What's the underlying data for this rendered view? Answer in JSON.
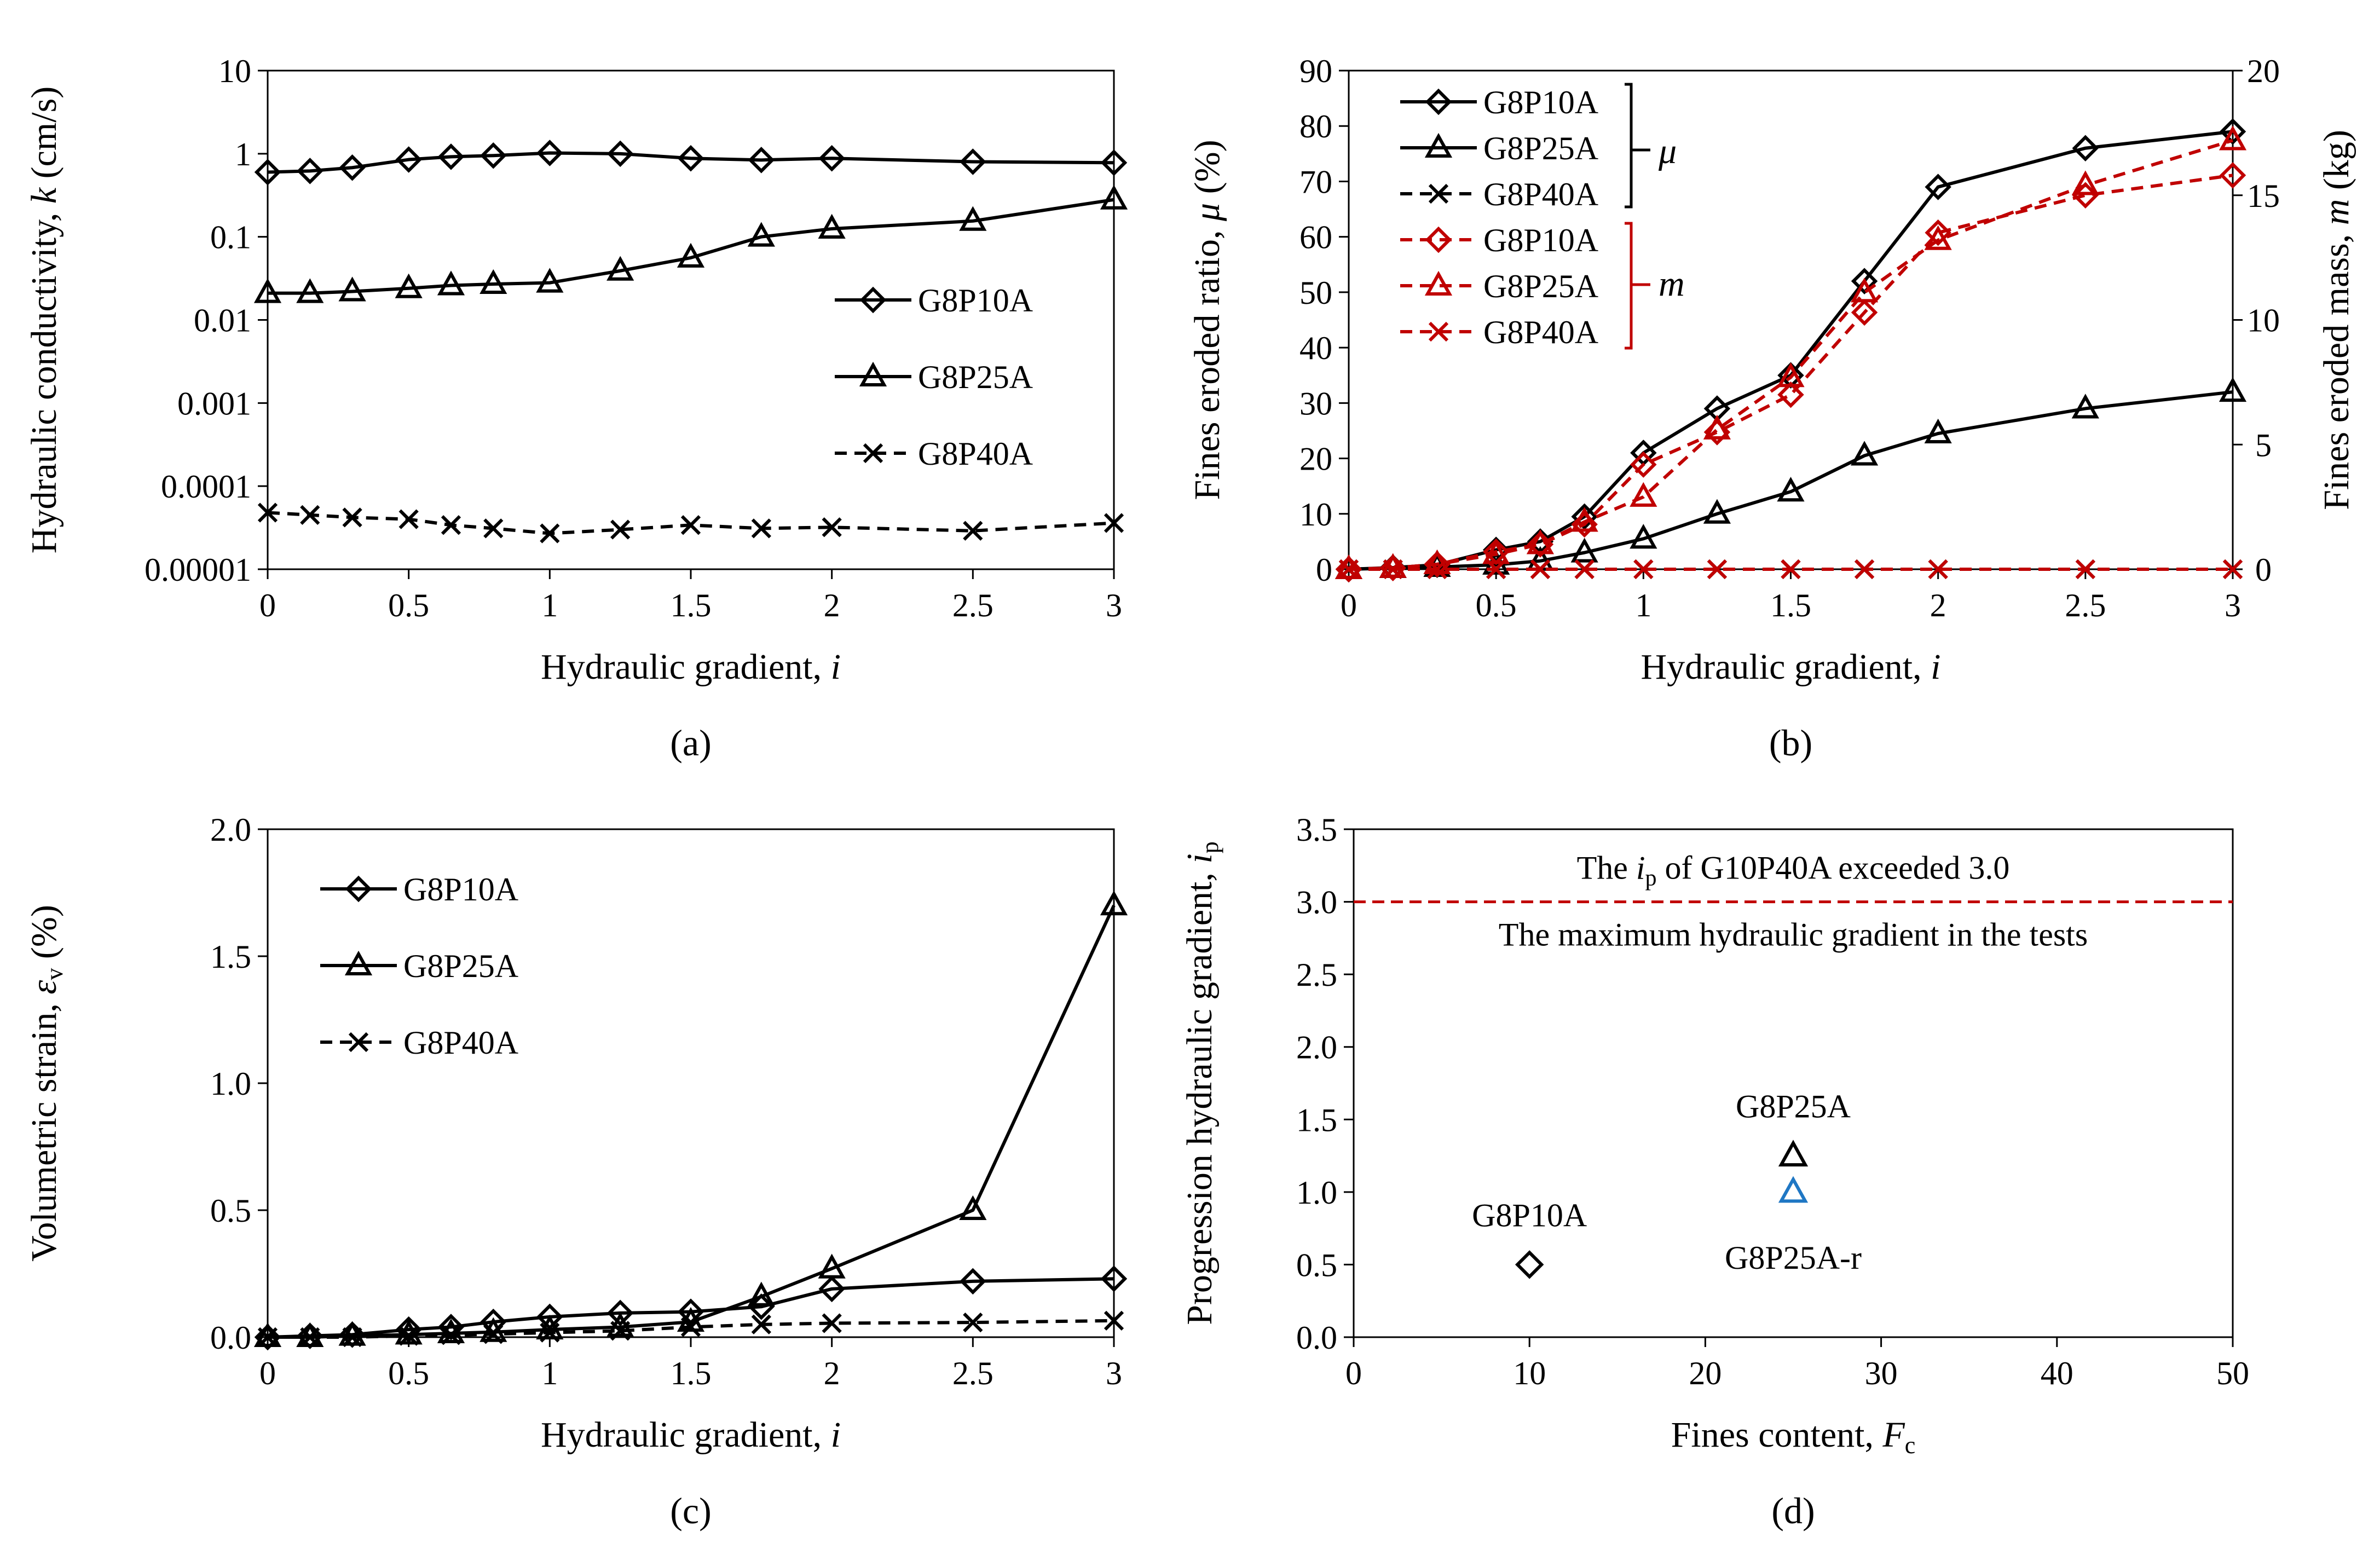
{
  "colors": {
    "black": "#000000",
    "red": "#c00000",
    "blue": "#1f77c4"
  },
  "chart_data": [
    {
      "id": "a",
      "type": "line",
      "caption": "(a)",
      "xlabel_text": "Hydraulic gradient, ",
      "xlabel_italic": "i",
      "ylabel_text": "Hydraulic conductivity, ",
      "ylabel_italic": "k",
      "ylabel_suffix": " (cm/s)",
      "xlim": [
        0,
        3
      ],
      "ylim": [
        1e-05,
        10
      ],
      "yscale": "log",
      "xticks": [
        0,
        0.5,
        1,
        1.5,
        2,
        2.5,
        3
      ],
      "xtick_labels": [
        "0",
        "0.5",
        "1",
        "1.5",
        "2",
        "2.5",
        "3"
      ],
      "yticks": [
        1e-05,
        0.0001,
        0.001,
        0.01,
        0.1,
        1,
        10
      ],
      "ytick_labels": [
        "0.00001",
        "0.0001",
        "0.001",
        "0.01",
        "0.1",
        "1",
        "10"
      ],
      "legend_position": "center-right",
      "series": [
        {
          "name": "G8P10A",
          "marker": "diamond",
          "color": "#000000",
          "dash": false,
          "x": [
            0,
            0.15,
            0.3,
            0.5,
            0.65,
            0.8,
            1,
            1.25,
            1.5,
            1.75,
            2,
            2.5,
            3
          ],
          "y": [
            0.6,
            0.62,
            0.68,
            0.85,
            0.92,
            0.95,
            1.02,
            1.0,
            0.88,
            0.84,
            0.88,
            0.8,
            0.78
          ]
        },
        {
          "name": "G8P25A",
          "marker": "triangle",
          "color": "#000000",
          "dash": false,
          "x": [
            0,
            0.15,
            0.3,
            0.5,
            0.65,
            0.8,
            1,
            1.25,
            1.5,
            1.75,
            2,
            2.5,
            3
          ],
          "y": [
            0.021,
            0.021,
            0.022,
            0.024,
            0.026,
            0.027,
            0.028,
            0.039,
            0.056,
            0.1,
            0.125,
            0.155,
            0.28
          ]
        },
        {
          "name": "G8P40A",
          "marker": "cross",
          "color": "#000000",
          "dash": true,
          "x": [
            0,
            0.15,
            0.3,
            0.5,
            0.65,
            0.8,
            1,
            1.25,
            1.5,
            1.75,
            2,
            2.5,
            3
          ],
          "y": [
            4.8e-05,
            4.5e-05,
            4.2e-05,
            4e-05,
            3.4e-05,
            3.1e-05,
            2.7e-05,
            3e-05,
            3.4e-05,
            3.1e-05,
            3.2e-05,
            2.9e-05,
            3.6e-05
          ]
        }
      ]
    },
    {
      "id": "b",
      "type": "line",
      "caption": "(b)",
      "xlabel_text": "Hydraulic gradient, ",
      "xlabel_italic": "i",
      "ylabel_text": "Fines eroded ratio, ",
      "ylabel_italic": "μ",
      "ylabel_suffix": " (%)",
      "y2label_text": "Fines eroded mass, ",
      "y2label_italic": "m",
      "y2label_suffix": " (kg)",
      "xlim": [
        0,
        3
      ],
      "ylim": [
        0,
        90
      ],
      "y2lim": [
        0,
        20
      ],
      "xticks": [
        0,
        0.5,
        1,
        1.5,
        2,
        2.5,
        3
      ],
      "xtick_labels": [
        "0",
        "0.5",
        "1",
        "1.5",
        "2",
        "2.5",
        "3"
      ],
      "yticks": [
        0,
        10,
        20,
        30,
        40,
        50,
        60,
        70,
        80,
        90
      ],
      "ytick_labels": [
        "0",
        "10",
        "20",
        "30",
        "40",
        "50",
        "60",
        "70",
        "80",
        "90"
      ],
      "y2ticks": [
        0,
        5,
        10,
        15,
        20
      ],
      "y2tick_labels": [
        "0",
        "5",
        "10",
        "15",
        "20"
      ],
      "legend_position": "top-left",
      "bracket_labels": {
        "mu": "μ",
        "m": "m"
      },
      "series": [
        {
          "name": "G8P10A",
          "group": "mu",
          "axis": "left",
          "marker": "diamond",
          "color": "#000000",
          "dash": false,
          "x": [
            0,
            0.15,
            0.3,
            0.5,
            0.65,
            0.8,
            1,
            1.25,
            1.5,
            1.75,
            2,
            2.5,
            3
          ],
          "y": [
            0,
            0.3,
            0.8,
            3.5,
            5,
            9.5,
            21,
            29,
            35,
            52,
            69,
            76,
            79
          ]
        },
        {
          "name": "G8P25A",
          "group": "mu",
          "axis": "left",
          "marker": "triangle",
          "color": "#000000",
          "dash": false,
          "x": [
            0,
            0.15,
            0.3,
            0.5,
            0.65,
            0.8,
            1,
            1.25,
            1.5,
            1.75,
            2,
            2.5,
            3
          ],
          "y": [
            0,
            0.2,
            0.4,
            0.8,
            1.5,
            3,
            5.5,
            10,
            14,
            20.5,
            24.5,
            29,
            32
          ]
        },
        {
          "name": "G8P40A",
          "group": "mu",
          "axis": "left",
          "marker": "cross",
          "color": "#000000",
          "dash": true,
          "x": [
            0,
            0.15,
            0.3,
            0.5,
            0.65,
            0.8,
            1,
            1.25,
            1.5,
            1.75,
            2,
            2.5,
            3
          ],
          "y": [
            0,
            0,
            0,
            0,
            0,
            0,
            0,
            0,
            0,
            0,
            0,
            0,
            0
          ]
        },
        {
          "name": "G8P10A",
          "group": "m",
          "axis": "right",
          "marker": "diamond",
          "color": "#c00000",
          "dash": true,
          "x": [
            0,
            0.15,
            0.3,
            0.5,
            0.65,
            0.8,
            1,
            1.25,
            1.5,
            1.75,
            2,
            2.5,
            3
          ],
          "y": [
            0,
            0.05,
            0.2,
            0.7,
            1.0,
            1.8,
            4.2,
            5.5,
            7.0,
            10.3,
            13.5,
            15.0,
            15.8
          ]
        },
        {
          "name": "G8P25A",
          "group": "m",
          "axis": "right",
          "marker": "triangle",
          "color": "#c00000",
          "dash": true,
          "x": [
            0,
            0.15,
            0.3,
            0.5,
            0.65,
            0.8,
            1,
            1.25,
            1.5,
            1.75,
            2,
            2.5,
            3
          ],
          "y": [
            0,
            0.05,
            0.2,
            0.6,
            1.0,
            1.9,
            2.9,
            5.6,
            7.7,
            11.1,
            13.2,
            15.4,
            17.2
          ]
        },
        {
          "name": "G8P40A",
          "group": "m",
          "axis": "right",
          "marker": "cross",
          "color": "#c00000",
          "dash": true,
          "x": [
            0,
            0.15,
            0.3,
            0.5,
            0.65,
            0.8,
            1,
            1.25,
            1.5,
            1.75,
            2,
            2.5,
            3
          ],
          "y": [
            0,
            0,
            0,
            0,
            0,
            0,
            0,
            0,
            0,
            0,
            0,
            0,
            0
          ]
        }
      ]
    },
    {
      "id": "c",
      "type": "line",
      "caption": "(c)",
      "xlabel_text": "Hydraulic gradient, ",
      "xlabel_italic": "i",
      "ylabel_text": "Volumetric strain, ",
      "ylabel_italic": "ε",
      "ylabel_sub": "v",
      "ylabel_suffix": " (%)",
      "xlim": [
        0,
        3
      ],
      "ylim": [
        0,
        2.0
      ],
      "xticks": [
        0,
        0.5,
        1,
        1.5,
        2,
        2.5,
        3
      ],
      "xtick_labels": [
        "0",
        "0.5",
        "1",
        "1.5",
        "2",
        "2.5",
        "3"
      ],
      "yticks": [
        0,
        0.5,
        1.0,
        1.5,
        2.0
      ],
      "ytick_labels": [
        "0.0",
        "0.5",
        "1.0",
        "1.5",
        "2.0"
      ],
      "legend_position": "top-left",
      "series": [
        {
          "name": "G8P10A",
          "marker": "diamond",
          "color": "#000000",
          "dash": false,
          "x": [
            0,
            0.15,
            0.3,
            0.5,
            0.65,
            0.8,
            1,
            1.25,
            1.5,
            1.75,
            2,
            2.5,
            3
          ],
          "y": [
            0,
            0.005,
            0.01,
            0.03,
            0.04,
            0.06,
            0.08,
            0.095,
            0.1,
            0.12,
            0.19,
            0.22,
            0.23
          ]
        },
        {
          "name": "G8P25A",
          "marker": "triangle",
          "color": "#000000",
          "dash": false,
          "x": [
            0,
            0.15,
            0.3,
            0.5,
            0.65,
            0.8,
            1,
            1.25,
            1.5,
            1.75,
            2,
            2.5,
            3
          ],
          "y": [
            0,
            0,
            0.005,
            0.01,
            0.015,
            0.02,
            0.03,
            0.04,
            0.06,
            0.16,
            0.27,
            0.5,
            1.7
          ]
        },
        {
          "name": "G8P40A",
          "marker": "cross",
          "color": "#000000",
          "dash": true,
          "x": [
            0,
            0.15,
            0.3,
            0.5,
            0.65,
            0.8,
            1,
            1.25,
            1.5,
            1.75,
            2,
            2.5,
            3
          ],
          "y": [
            0,
            0,
            0,
            0.005,
            0.008,
            0.012,
            0.018,
            0.025,
            0.04,
            0.05,
            0.055,
            0.058,
            0.065
          ]
        }
      ]
    },
    {
      "id": "d",
      "type": "scatter",
      "caption": "(d)",
      "xlabel_text": "Fines content, ",
      "xlabel_italic": "F",
      "xlabel_sub": "c",
      "ylabel_text": "Progression hydraulic gradient, ",
      "ylabel_italic": "i",
      "ylabel_sub": "p",
      "xlim": [
        0,
        50
      ],
      "ylim": [
        0,
        3.5
      ],
      "xticks": [
        0,
        10,
        20,
        30,
        40,
        50
      ],
      "xtick_labels": [
        "0",
        "10",
        "20",
        "30",
        "40",
        "50"
      ],
      "yticks": [
        0,
        0.5,
        1.0,
        1.5,
        2.0,
        2.5,
        3.0,
        3.5
      ],
      "ytick_labels": [
        "0.0",
        "0.5",
        "1.0",
        "1.5",
        "2.0",
        "2.5",
        "3.0",
        "3.5"
      ],
      "points": [
        {
          "name": "G8P10A",
          "x": 10,
          "y": 0.5,
          "marker": "diamond",
          "color": "#000000",
          "label_position": "above"
        },
        {
          "name": "G8P25A",
          "x": 25,
          "y": 1.25,
          "marker": "triangle",
          "color": "#000000",
          "label_position": "above"
        },
        {
          "name": "G8P25A-r",
          "x": 25,
          "y": 1.0,
          "marker": "triangle",
          "color": "#1f77c4",
          "label_position": "below"
        }
      ],
      "reference_line": {
        "y": 3.0,
        "color": "#c00000",
        "dash": true,
        "label_below": "The maximum hydraulic gradient in the tests",
        "label_above_prefix": "The ",
        "label_above_italic": "i",
        "label_above_sub": "p",
        "label_above_suffix": " of G10P40A exceeded 3.0"
      }
    }
  ]
}
